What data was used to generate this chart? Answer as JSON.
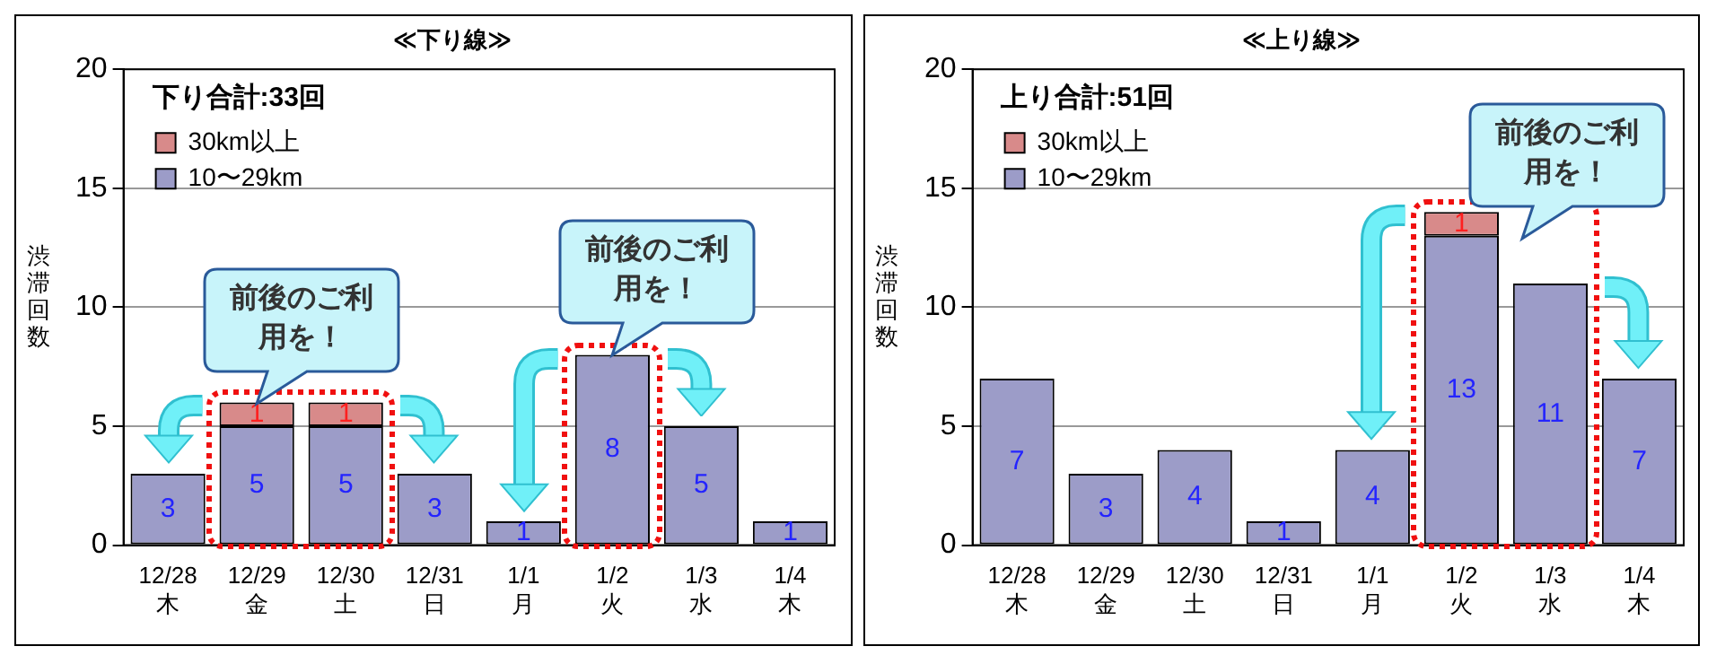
{
  "chart_data": [
    {
      "type": "bar",
      "title": "≪下り線≫",
      "ylabel": "渋滞回数",
      "categories": [
        "12/28\n木",
        "12/29\n金",
        "12/30\n土",
        "12/31\n日",
        "1/1\n月",
        "1/2\n火",
        "1/3\n水",
        "1/4\n木"
      ],
      "series": [
        {
          "name": "10〜29km",
          "color": "#9c9cc8",
          "values": [
            3,
            5,
            5,
            3,
            1,
            8,
            5,
            1
          ]
        },
        {
          "name": "30km以上",
          "color": "#d88a8a",
          "values": [
            null,
            1,
            1,
            null,
            null,
            null,
            null,
            null
          ]
        }
      ],
      "stacked": true,
      "ylim": [
        0,
        20
      ],
      "yticks": [
        0,
        5,
        10,
        15,
        20
      ],
      "grid": "y",
      "legend": "top left",
      "data_labels": true,
      "annotations": [
        "下り合計:33回",
        "前後のご利用を！",
        "前後のご利用を！"
      ]
    },
    {
      "type": "bar",
      "title": "≪上り線≫",
      "ylabel": "渋滞回数",
      "categories": [
        "12/28\n木",
        "12/29\n金",
        "12/30\n土",
        "12/31\n日",
        "1/1\n月",
        "1/2\n火",
        "1/3\n水",
        "1/4\n木"
      ],
      "series": [
        {
          "name": "10〜29km",
          "color": "#9c9cc8",
          "values": [
            7,
            3,
            4,
            1,
            4,
            13,
            11,
            7
          ]
        },
        {
          "name": "30km以上",
          "color": "#d88a8a",
          "values": [
            null,
            null,
            null,
            null,
            null,
            1,
            null,
            null
          ]
        }
      ],
      "stacked": true,
      "ylim": [
        0,
        20
      ],
      "yticks": [
        0,
        5,
        10,
        15,
        20
      ],
      "grid": "y",
      "legend": "top left",
      "data_labels": true,
      "annotations": [
        "上り合計:51回",
        "前後のご利用を！"
      ]
    }
  ]
}
